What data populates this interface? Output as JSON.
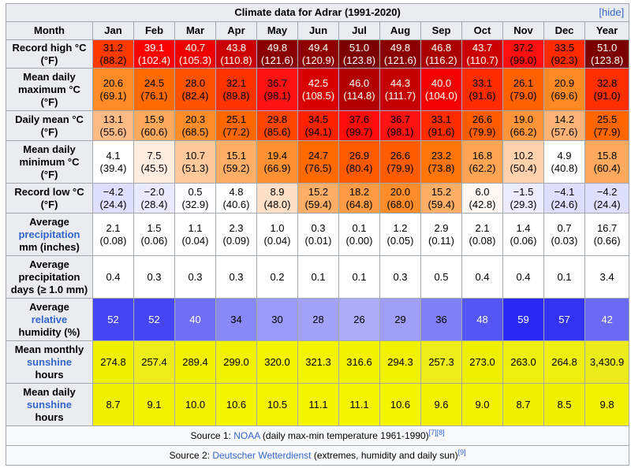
{
  "caption": "Climate data for Adrar (1991-2020)",
  "hide_label": "hide",
  "header": [
    "Month",
    "Jan",
    "Feb",
    "Mar",
    "Apr",
    "May",
    "Jun",
    "Jul",
    "Aug",
    "Sep",
    "Oct",
    "Nov",
    "Dec",
    "Year"
  ],
  "rows": [
    {
      "id": "record-high",
      "label": [
        "Record high °C (°F)"
      ],
      "height": 36,
      "cells": [
        {
          "v": "31.2",
          "s": "(88.2)",
          "bg": "#ff3a00",
          "c": "#000000"
        },
        {
          "v": "39.1",
          "s": "(102.4)",
          "bg": "#fd0000",
          "c": "#ffffff"
        },
        {
          "v": "40.7",
          "s": "(105.3)",
          "bg": "#ec0000",
          "c": "#ffffff"
        },
        {
          "v": "43.8",
          "s": "(110.8)",
          "bg": "#cb0000",
          "c": "#ffffff"
        },
        {
          "v": "49.8",
          "s": "(121.6)",
          "bg": "#8a0000",
          "c": "#ffffff"
        },
        {
          "v": "49.4",
          "s": "(120.9)",
          "bg": "#8e0000",
          "c": "#ffffff"
        },
        {
          "v": "51.0",
          "s": "(123.8)",
          "bg": "#7d0000",
          "c": "#ffffff"
        },
        {
          "v": "49.8",
          "s": "(121.6)",
          "bg": "#8a0000",
          "c": "#ffffff"
        },
        {
          "v": "46.8",
          "s": "(116.2)",
          "bg": "#aa0000",
          "c": "#ffffff"
        },
        {
          "v": "43.7",
          "s": "(110.7)",
          "bg": "#cc0000",
          "c": "#ffffff"
        },
        {
          "v": "37.2",
          "s": "(99.0)",
          "bg": "#ff1010",
          "c": "#000000"
        },
        {
          "v": "33.5",
          "s": "(92.3)",
          "bg": "#ff2a00",
          "c": "#000000"
        },
        {
          "v": "51.0",
          "s": "(123.8)",
          "bg": "#7d0000",
          "c": "#ffffff"
        }
      ]
    },
    {
      "id": "mean-daily-max",
      "label": [
        "Mean daily",
        "maximum °C",
        "(°F)"
      ],
      "height": 54,
      "cells": [
        {
          "v": "20.6",
          "s": "(69.1)",
          "bg": "#ff8b27",
          "c": "#000000"
        },
        {
          "v": "24.5",
          "s": "(76.1)",
          "bg": "#ff6b00",
          "c": "#000000"
        },
        {
          "v": "28.0",
          "s": "(82.4)",
          "bg": "#ff5200",
          "c": "#000000"
        },
        {
          "v": "32.1",
          "s": "(89.8)",
          "bg": "#ff3300",
          "c": "#000000"
        },
        {
          "v": "36.7",
          "s": "(98.1)",
          "bg": "#ff1212",
          "c": "#000000"
        },
        {
          "v": "42.5",
          "s": "(108.5)",
          "bg": "#d80000",
          "c": "#ffffff"
        },
        {
          "v": "46.0",
          "s": "(114.8)",
          "bg": "#b20000",
          "c": "#ffffff"
        },
        {
          "v": "44.3",
          "s": "(111.7)",
          "bg": "#c50000",
          "c": "#ffffff"
        },
        {
          "v": "40.0",
          "s": "(104.0)",
          "bg": "#f20000",
          "c": "#ffffff"
        },
        {
          "v": "33.1",
          "s": "(91.6)",
          "bg": "#ff2c00",
          "c": "#000000"
        },
        {
          "v": "26.1",
          "s": "(79.0)",
          "bg": "#ff6000",
          "c": "#000000"
        },
        {
          "v": "20.9",
          "s": "(69.6)",
          "bg": "#ff8a24",
          "c": "#000000"
        },
        {
          "v": "32.8",
          "s": "(91.0)",
          "bg": "#ff2f00",
          "c": "#000000"
        }
      ]
    },
    {
      "id": "daily-mean",
      "label": [
        "Daily mean °C",
        "(°F)"
      ],
      "height": 38,
      "cells": [
        {
          "v": "13.1",
          "s": "(55.6)",
          "bg": "#ffbb86",
          "c": "#000000"
        },
        {
          "v": "15.9",
          "s": "(60.6)",
          "bg": "#ffa95d",
          "c": "#000000"
        },
        {
          "v": "20.3",
          "s": "(68.5)",
          "bg": "#ff8d2a",
          "c": "#000000"
        },
        {
          "v": "25.1",
          "s": "(77.2)",
          "bg": "#ff6800",
          "c": "#000000"
        },
        {
          "v": "29.8",
          "s": "(85.6)",
          "bg": "#ff4500",
          "c": "#000000"
        },
        {
          "v": "34.5",
          "s": "(94.1)",
          "bg": "#ff2200",
          "c": "#000000"
        },
        {
          "v": "37.6",
          "s": "(99.7)",
          "bg": "#ff0c0c",
          "c": "#000000"
        },
        {
          "v": "36.7",
          "s": "(98.1)",
          "bg": "#ff1212",
          "c": "#000000"
        },
        {
          "v": "33.1",
          "s": "(91.6)",
          "bg": "#ff2c00",
          "c": "#000000"
        },
        {
          "v": "26.6",
          "s": "(79.9)",
          "bg": "#ff5c00",
          "c": "#000000"
        },
        {
          "v": "19.0",
          "s": "(66.2)",
          "bg": "#ff9438",
          "c": "#000000"
        },
        {
          "v": "14.2",
          "s": "(57.6)",
          "bg": "#ffb476",
          "c": "#000000"
        },
        {
          "v": "25.5",
          "s": "(77.9)",
          "bg": "#ff6600",
          "c": "#000000"
        }
      ]
    },
    {
      "id": "mean-daily-min",
      "label": [
        "Mean daily",
        "minimum °C",
        "(°F)"
      ],
      "height": 54,
      "cells": [
        {
          "v": "4.1",
          "s": "(39.4)",
          "bg": "#ffffff",
          "c": "#000000"
        },
        {
          "v": "7.5",
          "s": "(45.5)",
          "bg": "#ffeee0",
          "c": "#000000"
        },
        {
          "v": "10.7",
          "s": "(51.3)",
          "bg": "#ffc99c",
          "c": "#000000"
        },
        {
          "v": "15.1",
          "s": "(59.2)",
          "bg": "#ffae68",
          "c": "#000000"
        },
        {
          "v": "19.4",
          "s": "(66.9)",
          "bg": "#ff9132",
          "c": "#000000"
        },
        {
          "v": "24.7",
          "s": "(76.5)",
          "bg": "#ff6a00",
          "c": "#000000"
        },
        {
          "v": "26.9",
          "s": "(80.4)",
          "bg": "#ff5a00",
          "c": "#000000"
        },
        {
          "v": "26.6",
          "s": "(79.9)",
          "bg": "#ff5c00",
          "c": "#000000"
        },
        {
          "v": "23.2",
          "s": "(73.8)",
          "bg": "#ff7507",
          "c": "#000000"
        },
        {
          "v": "16.8",
          "s": "(62.2)",
          "bg": "#ffa452",
          "c": "#000000"
        },
        {
          "v": "10.2",
          "s": "(50.4)",
          "bg": "#ffd2ad",
          "c": "#000000"
        },
        {
          "v": "4.9",
          "s": "(40.8)",
          "bg": "#ffffff",
          "c": "#000000"
        },
        {
          "v": "15.8",
          "s": "(60.4)",
          "bg": "#ffa95e",
          "c": "#000000"
        }
      ]
    },
    {
      "id": "record-low",
      "label": [
        "Record low °C",
        "(°F)"
      ],
      "height": 38,
      "cells": [
        {
          "v": "−4.2",
          "s": "(24.4)",
          "bg": "#dedeff",
          "c": "#000000"
        },
        {
          "v": "−2.0",
          "s": "(28.4)",
          "bg": "#eaeaff",
          "c": "#000000"
        },
        {
          "v": "0.5",
          "s": "(32.9)",
          "bg": "#fcfcff",
          "c": "#000000"
        },
        {
          "v": "4.8",
          "s": "(40.6)",
          "bg": "#ffffff",
          "c": "#000000"
        },
        {
          "v": "8.9",
          "s": "(48.0)",
          "bg": "#ffdfc6",
          "c": "#000000"
        },
        {
          "v": "15.2",
          "s": "(59.4)",
          "bg": "#ffae67",
          "c": "#000000"
        },
        {
          "v": "18.2",
          "s": "(64.8)",
          "bg": "#ff9b45",
          "c": "#000000"
        },
        {
          "v": "20.0",
          "s": "(68.0)",
          "bg": "#ff8c2b",
          "c": "#000000"
        },
        {
          "v": "15.2",
          "s": "(59.4)",
          "bg": "#ffae67",
          "c": "#000000"
        },
        {
          "v": "6.0",
          "s": "(42.8)",
          "bg": "#fff8f2",
          "c": "#000000"
        },
        {
          "v": "−1.5",
          "s": "(29.3)",
          "bg": "#ececff",
          "c": "#000000"
        },
        {
          "v": "−4.1",
          "s": "(24.6)",
          "bg": "#dedeff",
          "c": "#000000"
        },
        {
          "v": "−4.2",
          "s": "(24.4)",
          "bg": "#dedeff",
          "c": "#000000"
        }
      ]
    },
    {
      "id": "avg-precip-mm",
      "label": [
        "Average",
        "precipitation",
        "mm (inches)"
      ],
      "link_line": 1,
      "height": 54,
      "cells": [
        {
          "v": "2.1",
          "s": "(0.08)",
          "bg": "#ffffff",
          "c": "#000000"
        },
        {
          "v": "1.5",
          "s": "(0.06)",
          "bg": "#ffffff",
          "c": "#000000"
        },
        {
          "v": "1.1",
          "s": "(0.04)",
          "bg": "#ffffff",
          "c": "#000000"
        },
        {
          "v": "2.3",
          "s": "(0.09)",
          "bg": "#ffffff",
          "c": "#000000"
        },
        {
          "v": "1.0",
          "s": "(0.04)",
          "bg": "#ffffff",
          "c": "#000000"
        },
        {
          "v": "0.3",
          "s": "(0.01)",
          "bg": "#ffffff",
          "c": "#000000"
        },
        {
          "v": "0.1",
          "s": "(0.00)",
          "bg": "#ffffff",
          "c": "#000000"
        },
        {
          "v": "1.2",
          "s": "(0.05)",
          "bg": "#ffffff",
          "c": "#000000"
        },
        {
          "v": "2.9",
          "s": "(0.11)",
          "bg": "#ffffff",
          "c": "#000000"
        },
        {
          "v": "2.1",
          "s": "(0.08)",
          "bg": "#ffffff",
          "c": "#000000"
        },
        {
          "v": "1.4",
          "s": "(0.06)",
          "bg": "#ffffff",
          "c": "#000000"
        },
        {
          "v": "0.7",
          "s": "(0.03)",
          "bg": "#ffffff",
          "c": "#000000"
        },
        {
          "v": "16.7",
          "s": "(0.66)",
          "bg": "#ffffff",
          "c": "#000000"
        }
      ]
    },
    {
      "id": "avg-precip-days",
      "label": [
        "Average",
        "precipitation",
        "days (≥ 1.0 mm)"
      ],
      "height": 54,
      "cells": [
        {
          "v": "0.4",
          "bg": "#ffffff",
          "c": "#000000"
        },
        {
          "v": "0.3",
          "bg": "#ffffff",
          "c": "#000000"
        },
        {
          "v": "0.3",
          "bg": "#ffffff",
          "c": "#000000"
        },
        {
          "v": "0.3",
          "bg": "#ffffff",
          "c": "#000000"
        },
        {
          "v": "0.2",
          "bg": "#ffffff",
          "c": "#000000"
        },
        {
          "v": "0.1",
          "bg": "#ffffff",
          "c": "#000000"
        },
        {
          "v": "0.1",
          "bg": "#ffffff",
          "c": "#000000"
        },
        {
          "v": "0.3",
          "bg": "#ffffff",
          "c": "#000000"
        },
        {
          "v": "0.5",
          "bg": "#ffffff",
          "c": "#000000"
        },
        {
          "v": "0.4",
          "bg": "#ffffff",
          "c": "#000000"
        },
        {
          "v": "0.4",
          "bg": "#ffffff",
          "c": "#000000"
        },
        {
          "v": "0.1",
          "bg": "#ffffff",
          "c": "#000000"
        },
        {
          "v": "3.4",
          "bg": "#ffffff",
          "c": "#000000"
        }
      ]
    },
    {
      "id": "avg-humidity",
      "label": [
        "Average",
        "relative",
        "humidity (%)"
      ],
      "link_line": 1,
      "height": 54,
      "cells": [
        {
          "v": "52",
          "bg": "#4545f4",
          "c": "#ffffff"
        },
        {
          "v": "52",
          "bg": "#4545f4",
          "c": "#ffffff"
        },
        {
          "v": "40",
          "bg": "#6f6ff5",
          "c": "#ffffff"
        },
        {
          "v": "34",
          "bg": "#8888f6",
          "c": "#000000"
        },
        {
          "v": "30",
          "bg": "#9a9af8",
          "c": "#000000"
        },
        {
          "v": "28",
          "bg": "#a2a2f8",
          "c": "#000000"
        },
        {
          "v": "26",
          "bg": "#acacf8",
          "c": "#000000"
        },
        {
          "v": "29",
          "bg": "#9f9ff7",
          "c": "#000000"
        },
        {
          "v": "36",
          "bg": "#7f7ff6",
          "c": "#000000"
        },
        {
          "v": "48",
          "bg": "#5555f5",
          "c": "#ffffff"
        },
        {
          "v": "59",
          "bg": "#2a2af2",
          "c": "#ffffff"
        },
        {
          "v": "57",
          "bg": "#3333f3",
          "c": "#ffffff"
        },
        {
          "v": "42",
          "bg": "#6a6af5",
          "c": "#ffffff"
        }
      ]
    },
    {
      "id": "mean-monthly-sunshine",
      "label": [
        "Mean monthly",
        "sunshine",
        "hours"
      ],
      "link_line": 1,
      "height": 54,
      "cells": [
        {
          "v": "274.8",
          "bg": "#efef00",
          "c": "#000000"
        },
        {
          "v": "257.4",
          "bg": "#eded1b",
          "c": "#000000"
        },
        {
          "v": "289.4",
          "bg": "#f0f000",
          "c": "#000000"
        },
        {
          "v": "299.0",
          "bg": "#f1f100",
          "c": "#000000"
        },
        {
          "v": "320.0",
          "bg": "#f4f400",
          "c": "#000000"
        },
        {
          "v": "321.3",
          "bg": "#f4f400",
          "c": "#000000"
        },
        {
          "v": "316.6",
          "bg": "#f3f300",
          "c": "#000000"
        },
        {
          "v": "294.3",
          "bg": "#f1f100",
          "c": "#000000"
        },
        {
          "v": "257.3",
          "bg": "#eded1b",
          "c": "#000000"
        },
        {
          "v": "273.0",
          "bg": "#efef00",
          "c": "#000000"
        },
        {
          "v": "263.0",
          "bg": "#eeee10",
          "c": "#000000"
        },
        {
          "v": "264.8",
          "bg": "#eeee10",
          "c": "#000000"
        },
        {
          "v": "3,430.9",
          "bg": "#ecec1c",
          "c": "#000000"
        }
      ]
    },
    {
      "id": "mean-daily-sunshine",
      "label": [
        "Mean daily",
        "sunshine",
        "hours"
      ],
      "link_line": 1,
      "height": 54,
      "cells": [
        {
          "v": "8.7",
          "bg": "#efef00",
          "c": "#000000"
        },
        {
          "v": "9.1",
          "bg": "#f1f100",
          "c": "#000000"
        },
        {
          "v": "10.0",
          "bg": "#f3f300",
          "c": "#000000"
        },
        {
          "v": "10.6",
          "bg": "#f5f500",
          "c": "#000000"
        },
        {
          "v": "10.5",
          "bg": "#f4f400",
          "c": "#000000"
        },
        {
          "v": "11.1",
          "bg": "#f5f500",
          "c": "#000000"
        },
        {
          "v": "11.1",
          "bg": "#f5f500",
          "c": "#000000"
        },
        {
          "v": "10.6",
          "bg": "#f5f500",
          "c": "#000000"
        },
        {
          "v": "9.6",
          "bg": "#f2f200",
          "c": "#000000"
        },
        {
          "v": "9.0",
          "bg": "#f1f100",
          "c": "#000000"
        },
        {
          "v": "8.7",
          "bg": "#efef00",
          "c": "#000000"
        },
        {
          "v": "8.5",
          "bg": "#efef00",
          "c": "#000000"
        },
        {
          "v": "9.8",
          "bg": "#f2f200",
          "c": "#000000"
        }
      ]
    }
  ],
  "sources": [
    {
      "prefix": "Source 1: ",
      "link": "NOAA",
      "suffix": " (daily max-min temperature 1961-1990)",
      "refs": "[7][8]"
    },
    {
      "prefix": "Source 2: ",
      "link": "Deutscher Wetterdienst",
      "suffix": " (extremes, humidity and daily sun)",
      "refs": "[9]"
    }
  ]
}
